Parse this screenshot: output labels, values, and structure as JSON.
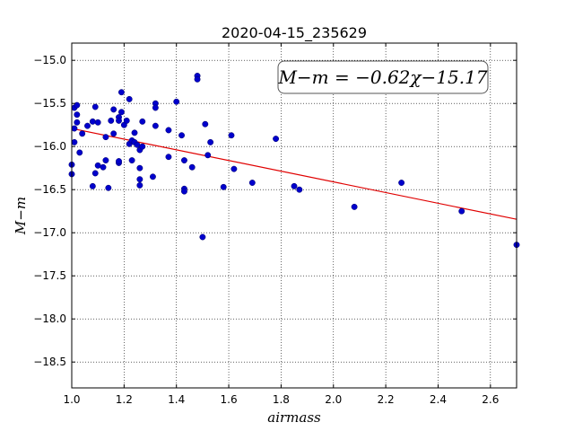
{
  "chart_data": {
    "type": "scatter",
    "title": "2020-04-15_235629",
    "xlabel": "airmass",
    "ylabel": "M−m",
    "xlim": [
      1.0,
      2.7
    ],
    "ylim": [
      -18.8,
      -14.8
    ],
    "x_ticks": [
      1.0,
      1.2,
      1.4,
      1.6,
      1.8,
      2.0,
      2.2,
      2.4,
      2.6
    ],
    "y_ticks": [
      -15.0,
      -15.5,
      -16.0,
      -16.5,
      -17.0,
      -17.5,
      -18.0,
      -18.5
    ],
    "x_tick_labels": [
      "1.0",
      "1.2",
      "1.4",
      "1.6",
      "1.8",
      "2.0",
      "2.2",
      "2.4",
      "2.6"
    ],
    "y_tick_labels": [
      "−15.0",
      "−15.5",
      "−16.0",
      "−16.5",
      "−17.0",
      "−17.5",
      "−18.0",
      "−18.5"
    ],
    "grid": true,
    "annotation": "M−m = −0.62χ−15.17",
    "fit": {
      "slope": -0.62,
      "intercept": -15.17,
      "color": "#e00000"
    },
    "point_color": "#0000cc",
    "points": [
      [
        1.0,
        -16.32
      ],
      [
        1.0,
        -16.21
      ],
      [
        1.01,
        -15.55
      ],
      [
        1.01,
        -15.79
      ],
      [
        1.01,
        -15.95
      ],
      [
        1.02,
        -15.52
      ],
      [
        1.02,
        -15.72
      ],
      [
        1.02,
        -15.63
      ],
      [
        1.03,
        -16.07
      ],
      [
        1.04,
        -15.85
      ],
      [
        1.06,
        -15.76
      ],
      [
        1.08,
        -15.71
      ],
      [
        1.08,
        -16.46
      ],
      [
        1.09,
        -15.54
      ],
      [
        1.09,
        -16.31
      ],
      [
        1.1,
        -15.72
      ],
      [
        1.1,
        -16.22
      ],
      [
        1.12,
        -16.24
      ],
      [
        1.13,
        -16.16
      ],
      [
        1.13,
        -15.89
      ],
      [
        1.14,
        -16.48
      ],
      [
        1.15,
        -15.7
      ],
      [
        1.16,
        -15.57
      ],
      [
        1.16,
        -15.85
      ],
      [
        1.18,
        -16.19
      ],
      [
        1.18,
        -16.17
      ],
      [
        1.18,
        -15.66
      ],
      [
        1.18,
        -15.7
      ],
      [
        1.19,
        -15.37
      ],
      [
        1.19,
        -15.6
      ],
      [
        1.2,
        -15.75
      ],
      [
        1.21,
        -15.7
      ],
      [
        1.22,
        -15.45
      ],
      [
        1.22,
        -15.97
      ],
      [
        1.23,
        -16.16
      ],
      [
        1.23,
        -15.93
      ],
      [
        1.24,
        -15.84
      ],
      [
        1.24,
        -15.95
      ],
      [
        1.25,
        -15.98
      ],
      [
        1.26,
        -16.04
      ],
      [
        1.26,
        -16.45
      ],
      [
        1.26,
        -16.38
      ],
      [
        1.26,
        -16.25
      ],
      [
        1.27,
        -16.0
      ],
      [
        1.27,
        -15.71
      ],
      [
        1.31,
        -16.35
      ],
      [
        1.32,
        -15.5
      ],
      [
        1.32,
        -15.55
      ],
      [
        1.32,
        -15.76
      ],
      [
        1.37,
        -15.81
      ],
      [
        1.37,
        -16.12
      ],
      [
        1.4,
        -15.48
      ],
      [
        1.42,
        -15.87
      ],
      [
        1.43,
        -16.16
      ],
      [
        1.43,
        -16.49
      ],
      [
        1.43,
        -16.52
      ],
      [
        1.46,
        -16.24
      ],
      [
        1.48,
        -15.18
      ],
      [
        1.48,
        -15.22
      ],
      [
        1.5,
        -17.05
      ],
      [
        1.51,
        -15.74
      ],
      [
        1.52,
        -16.1
      ],
      [
        1.53,
        -15.95
      ],
      [
        1.58,
        -16.47
      ],
      [
        1.61,
        -15.87
      ],
      [
        1.62,
        -16.26
      ],
      [
        1.69,
        -16.42
      ],
      [
        1.78,
        -15.91
      ],
      [
        1.85,
        -16.46
      ],
      [
        1.87,
        -16.5
      ],
      [
        2.08,
        -16.7
      ],
      [
        2.26,
        -16.42
      ],
      [
        2.49,
        -16.75
      ],
      [
        2.7,
        -17.14
      ]
    ]
  }
}
